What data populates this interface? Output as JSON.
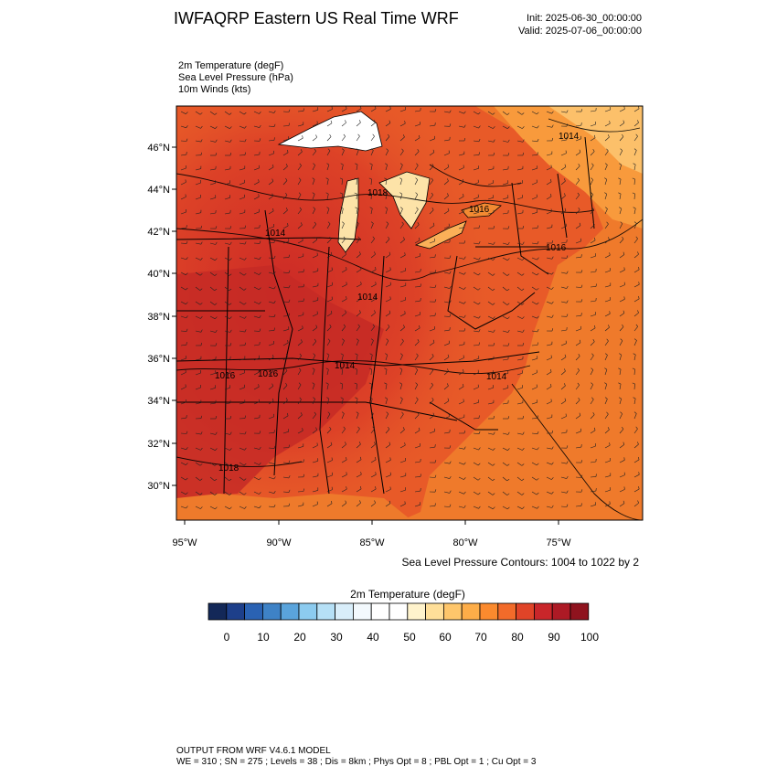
{
  "header": {
    "title": "IWFAQRP Eastern US Real Time WRF",
    "init": "Init: 2025-06-30_00:00:00",
    "valid": "Valid: 2025-07-06_00:00:00"
  },
  "fields": [
    "2m Temperature   (degF)",
    "Sea Level Pressure   (hPa)",
    "10m Winds   (kts)"
  ],
  "map": {
    "lat_labels": [
      "46°N",
      "44°N",
      "42°N",
      "40°N",
      "38°N",
      "36°N",
      "34°N",
      "32°N",
      "30°N"
    ],
    "lon_labels": [
      "95°W",
      "90°W",
      "85°W",
      "80°W",
      "75°W"
    ],
    "pressure_labels": [
      "1014",
      "1018",
      "1016",
      "1016",
      "1014",
      "1014",
      "1016",
      "1016",
      "1014",
      "1014",
      "1018"
    ]
  },
  "contours_note": "Sea Level Pressure Contours: 1004 to 1022 by 2",
  "colorbar": {
    "title": "2m Temperature  (degF)",
    "labels": [
      "0",
      "10",
      "20",
      "30",
      "40",
      "50",
      "60",
      "70",
      "80",
      "90",
      "100"
    ],
    "colors": [
      "#132858",
      "#1d3f8a",
      "#2a62b3",
      "#3e82c6",
      "#5aa4dc",
      "#8ccbef",
      "#b6e0f6",
      "#d9eefa",
      "#f3f9fd",
      "#ffffff",
      "#ffffff",
      "#fff3cc",
      "#ffdf99",
      "#fec66b",
      "#fdad48",
      "#fb8a2e",
      "#f26b2a",
      "#e04428",
      "#c9262a",
      "#ad1a25",
      "#8f131e"
    ]
  },
  "footer": {
    "line1": "OUTPUT FROM WRF V4.6.1 MODEL",
    "line2": "WE = 310 ; SN = 275 ; Levels = 38 ; Dis = 8km ; Phys Opt = 8 ; PBL Opt = 1 ; Cu Opt = 3"
  }
}
